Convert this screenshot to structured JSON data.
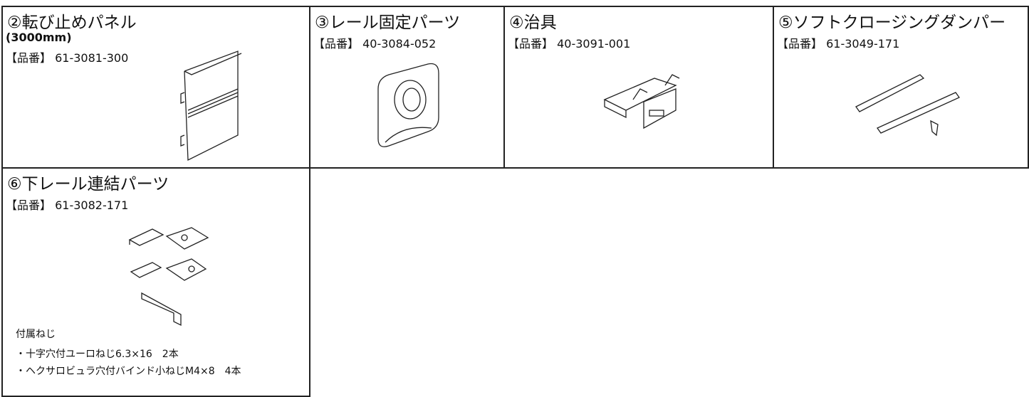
{
  "parts": [
    {
      "title": "②転び止めパネル",
      "spec": "(3000mm)",
      "part_no": "【品番】 61-3081-300"
    },
    {
      "title": "③レール固定パーツ",
      "part_no": "【品番】 40-3084-052"
    },
    {
      "title": "④治具",
      "part_no": "【品番】 40-3091-001"
    },
    {
      "title": "⑤ソフトクロージングダンパー",
      "part_no": "【品番】 61-3049-171"
    },
    {
      "title": "⑥下レール連結パーツ",
      "part_no": "【品番】 61-3082-171",
      "accessories": {
        "heading": "付属ねじ",
        "items": [
          "・十字穴付ユーロねじ6.3×16　2本",
          "・ヘクサロビュラ穴付バインド小ねじM4×8　4本"
        ]
      }
    }
  ]
}
